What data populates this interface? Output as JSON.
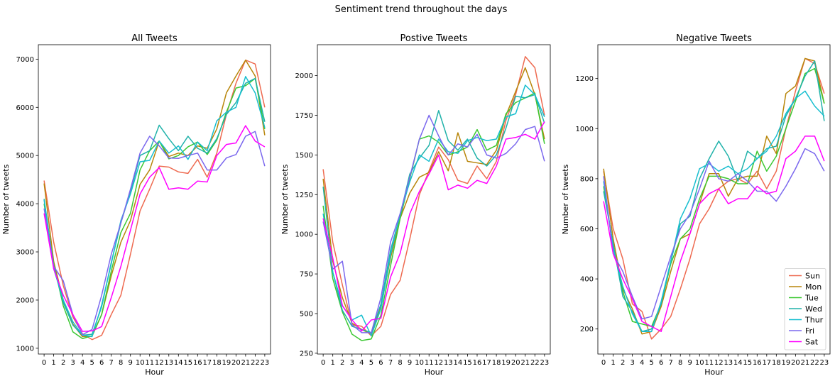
{
  "figure": {
    "suptitle": "Sentiment trend throughout the days"
  },
  "chart_data": [
    {
      "type": "line",
      "title": "All Tweets",
      "xlabel": "Hour",
      "ylabel": "Number of tweets",
      "x": [
        0,
        1,
        2,
        3,
        4,
        5,
        6,
        7,
        8,
        9,
        10,
        11,
        12,
        13,
        14,
        15,
        16,
        17,
        18,
        19,
        20,
        21,
        22,
        23
      ],
      "xlim": [
        -0.6,
        23.6
      ],
      "ylim": [
        880,
        7300
      ],
      "yticks": [
        1000,
        2000,
        3000,
        4000,
        5000,
        6000,
        7000
      ],
      "series": [
        {
          "name": "Sun",
          "color": "#ee6a50",
          "values": [
            4480,
            3200,
            2300,
            1650,
            1300,
            1180,
            1270,
            1700,
            2100,
            2950,
            3850,
            4300,
            4780,
            4760,
            4660,
            4630,
            4920,
            4550,
            5050,
            5850,
            6500,
            6980,
            6900,
            6000
          ]
        },
        {
          "name": "Mon",
          "color": "#b8860b",
          "values": [
            4420,
            2800,
            2000,
            1500,
            1240,
            1250,
            1700,
            2500,
            3200,
            3650,
            4400,
            4700,
            5300,
            4980,
            5050,
            5000,
            5200,
            5150,
            5550,
            6300,
            6650,
            6980,
            6650,
            5420
          ]
        },
        {
          "name": "Tue",
          "color": "#3cc832",
          "values": [
            4000,
            2750,
            1880,
            1340,
            1200,
            1260,
            1700,
            2600,
            3400,
            3800,
            4700,
            5100,
            5300,
            4930,
            5000,
            5180,
            5280,
            5020,
            5320,
            5900,
            6400,
            6450,
            6600,
            5550
          ]
        },
        {
          "name": "Wed",
          "color": "#20b2aa",
          "values": [
            4100,
            2700,
            1950,
            1480,
            1270,
            1290,
            1860,
            2780,
            3600,
            4250,
            5000,
            5100,
            5630,
            5350,
            5100,
            5400,
            5150,
            5050,
            5350,
            5850,
            6100,
            6500,
            6600,
            5700
          ]
        },
        {
          "name": "Thur",
          "color": "#17becf",
          "values": [
            4080,
            2650,
            2000,
            1550,
            1270,
            1240,
            1900,
            2750,
            3650,
            4200,
            4870,
            4900,
            5300,
            5050,
            5200,
            4920,
            5280,
            5100,
            5720,
            5900,
            6000,
            6640,
            6300,
            5580
          ]
        },
        {
          "name": "Fri",
          "color": "#7b68ee",
          "values": [
            3900,
            2700,
            2400,
            1700,
            1280,
            1390,
            2100,
            2950,
            3600,
            4300,
            5050,
            5400,
            5200,
            4950,
            4940,
            5000,
            5050,
            4700,
            4700,
            4950,
            5020,
            5400,
            5500,
            4780
          ]
        },
        {
          "name": "Sat",
          "color": "#ff00ff",
          "values": [
            3800,
            2650,
            2100,
            1700,
            1350,
            1360,
            1450,
            2050,
            2700,
            3450,
            4200,
            4550,
            4750,
            4300,
            4330,
            4300,
            4470,
            4450,
            5000,
            5230,
            5260,
            5620,
            5300,
            5180
          ]
        }
      ]
    },
    {
      "type": "line",
      "title": "Postive Tweets",
      "xlabel": "Hour",
      "ylabel": "Number of tweets",
      "x": [
        0,
        1,
        2,
        3,
        4,
        5,
        6,
        7,
        8,
        9,
        10,
        11,
        12,
        13,
        14,
        15,
        16,
        17,
        18,
        19,
        20,
        21,
        22,
        23
      ],
      "xlim": [
        -0.6,
        23.6
      ],
      "ylim": [
        245,
        2195
      ],
      "yticks": [
        250,
        500,
        750,
        1000,
        1250,
        1500,
        1750,
        2000
      ],
      "series": [
        {
          "name": "Sun",
          "color": "#ee6a50",
          "values": [
            1410,
            950,
            680,
            430,
            420,
            360,
            420,
            620,
            710,
            970,
            1250,
            1400,
            1550,
            1470,
            1340,
            1320,
            1430,
            1350,
            1460,
            1720,
            1880,
            2120,
            2050,
            1750
          ]
        },
        {
          "name": "Mon",
          "color": "#b8860b",
          "values": [
            1350,
            830,
            600,
            440,
            400,
            370,
            540,
            850,
            1100,
            1260,
            1360,
            1390,
            1520,
            1400,
            1640,
            1460,
            1450,
            1440,
            1530,
            1750,
            1900,
            2050,
            1880,
            1600
          ]
        },
        {
          "name": "Tue",
          "color": "#3cc832",
          "values": [
            1180,
            720,
            510,
            370,
            330,
            340,
            490,
            800,
            1100,
            1350,
            1600,
            1620,
            1580,
            1500,
            1520,
            1550,
            1660,
            1530,
            1560,
            1760,
            1830,
            1860,
            1890,
            1570
          ]
        },
        {
          "name": "Wed",
          "color": "#20b2aa",
          "values": [
            1300,
            760,
            520,
            420,
            400,
            380,
            560,
            900,
            1120,
            1380,
            1480,
            1560,
            1780,
            1590,
            1530,
            1600,
            1480,
            1430,
            1500,
            1670,
            1870,
            1860,
            1880,
            1700
          ]
        },
        {
          "name": "Thur",
          "color": "#17becf",
          "values": [
            1130,
            760,
            550,
            460,
            490,
            360,
            530,
            870,
            1130,
            1330,
            1500,
            1460,
            1600,
            1520,
            1510,
            1590,
            1610,
            1590,
            1600,
            1740,
            1760,
            1940,
            1880,
            1740
          ]
        },
        {
          "name": "Fri",
          "color": "#7b68ee",
          "values": [
            1080,
            780,
            830,
            430,
            380,
            380,
            600,
            950,
            1130,
            1360,
            1600,
            1750,
            1620,
            1500,
            1570,
            1550,
            1630,
            1500,
            1480,
            1510,
            1570,
            1660,
            1680,
            1460
          ]
        },
        {
          "name": "Sat",
          "color": "#ff00ff",
          "values": [
            1100,
            850,
            550,
            460,
            390,
            460,
            470,
            730,
            880,
            1130,
            1270,
            1380,
            1500,
            1280,
            1310,
            1290,
            1340,
            1320,
            1430,
            1600,
            1610,
            1630,
            1600,
            1710
          ]
        }
      ]
    },
    {
      "type": "line",
      "title": "Negative Tweets",
      "xlabel": "Hour",
      "ylabel": "Number of tweets",
      "x": [
        0,
        1,
        2,
        3,
        4,
        5,
        6,
        7,
        8,
        9,
        10,
        11,
        12,
        13,
        14,
        15,
        16,
        17,
        18,
        19,
        20,
        21,
        22,
        23
      ],
      "xlim": [
        -0.6,
        23.6
      ],
      "ylim": [
        100,
        1335
      ],
      "yticks": [
        200,
        400,
        600,
        800,
        1000,
        1200
      ],
      "series": [
        {
          "name": "Sun",
          "color": "#ee6a50",
          "values": [
            830,
            600,
            480,
            300,
            270,
            160,
            200,
            250,
            360,
            480,
            620,
            680,
            760,
            790,
            800,
            780,
            830,
            760,
            830,
            1000,
            1150,
            1280,
            1260,
            1140
          ]
        },
        {
          "name": "Mon",
          "color": "#b8860b",
          "values": [
            840,
            560,
            360,
            280,
            180,
            190,
            290,
            430,
            560,
            580,
            700,
            820,
            820,
            730,
            800,
            810,
            810,
            970,
            900,
            1140,
            1170,
            1280,
            1270,
            1100
          ]
        },
        {
          "name": "Tue",
          "color": "#3cc832",
          "values": [
            770,
            530,
            350,
            230,
            220,
            210,
            300,
            460,
            560,
            600,
            720,
            810,
            810,
            800,
            780,
            780,
            910,
            830,
            890,
            1000,
            1110,
            1220,
            1240,
            1100
          ]
        },
        {
          "name": "Wed",
          "color": "#20b2aa",
          "values": [
            750,
            540,
            330,
            270,
            190,
            200,
            300,
            470,
            620,
            650,
            800,
            880,
            950,
            890,
            790,
            910,
            880,
            920,
            930,
            1050,
            1120,
            1210,
            1270,
            1030
          ]
        },
        {
          "name": "Thur",
          "color": "#17becf",
          "values": [
            790,
            520,
            370,
            260,
            190,
            190,
            310,
            470,
            640,
            720,
            840,
            860,
            830,
            850,
            820,
            840,
            880,
            910,
            970,
            1060,
            1120,
            1150,
            1090,
            1050
          ]
        },
        {
          "name": "Fri",
          "color": "#7b68ee",
          "values": [
            810,
            500,
            430,
            330,
            240,
            250,
            370,
            490,
            600,
            660,
            760,
            870,
            800,
            790,
            820,
            790,
            750,
            750,
            710,
            770,
            840,
            920,
            900,
            830
          ]
        },
        {
          "name": "Sat",
          "color": "#ff00ff",
          "values": [
            710,
            500,
            400,
            320,
            230,
            210,
            190,
            330,
            470,
            580,
            700,
            740,
            760,
            700,
            720,
            720,
            770,
            740,
            750,
            880,
            910,
            970,
            970,
            870
          ]
        }
      ]
    }
  ]
}
